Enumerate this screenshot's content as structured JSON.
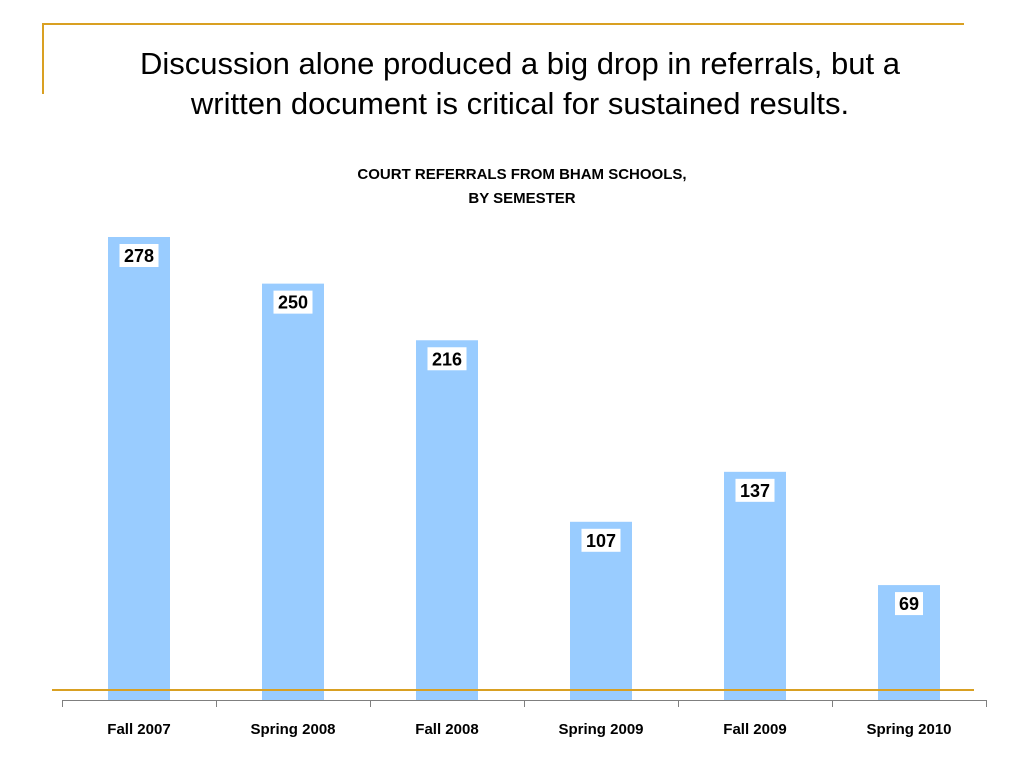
{
  "slide": {
    "headline_line1": "Discussion alone produced a big drop in referrals, but a",
    "headline_line2": "written document is critical for sustained results."
  },
  "colors": {
    "bar": "#99ccff",
    "accent": "#d9a022",
    "axis": "#7f7f7f",
    "label_background": "#ffffff"
  },
  "chart_data": {
    "type": "bar",
    "title": [
      "COURT REFERRALS FROM BHAM SCHOOLS,",
      "BY SEMESTER"
    ],
    "xlabel": "",
    "ylabel": "",
    "categories": [
      "Fall 2007",
      "Spring 2008",
      "Fall 2008",
      "Spring 2009",
      "Fall 2009",
      "Spring 2010"
    ],
    "values": [
      278,
      250,
      216,
      107,
      137,
      69
    ],
    "data_labels": [
      "278",
      "250",
      "216",
      "107",
      "137",
      "69"
    ],
    "ylim": [
      0,
      278
    ],
    "grid": false,
    "legend": "none",
    "reference_line": true
  }
}
